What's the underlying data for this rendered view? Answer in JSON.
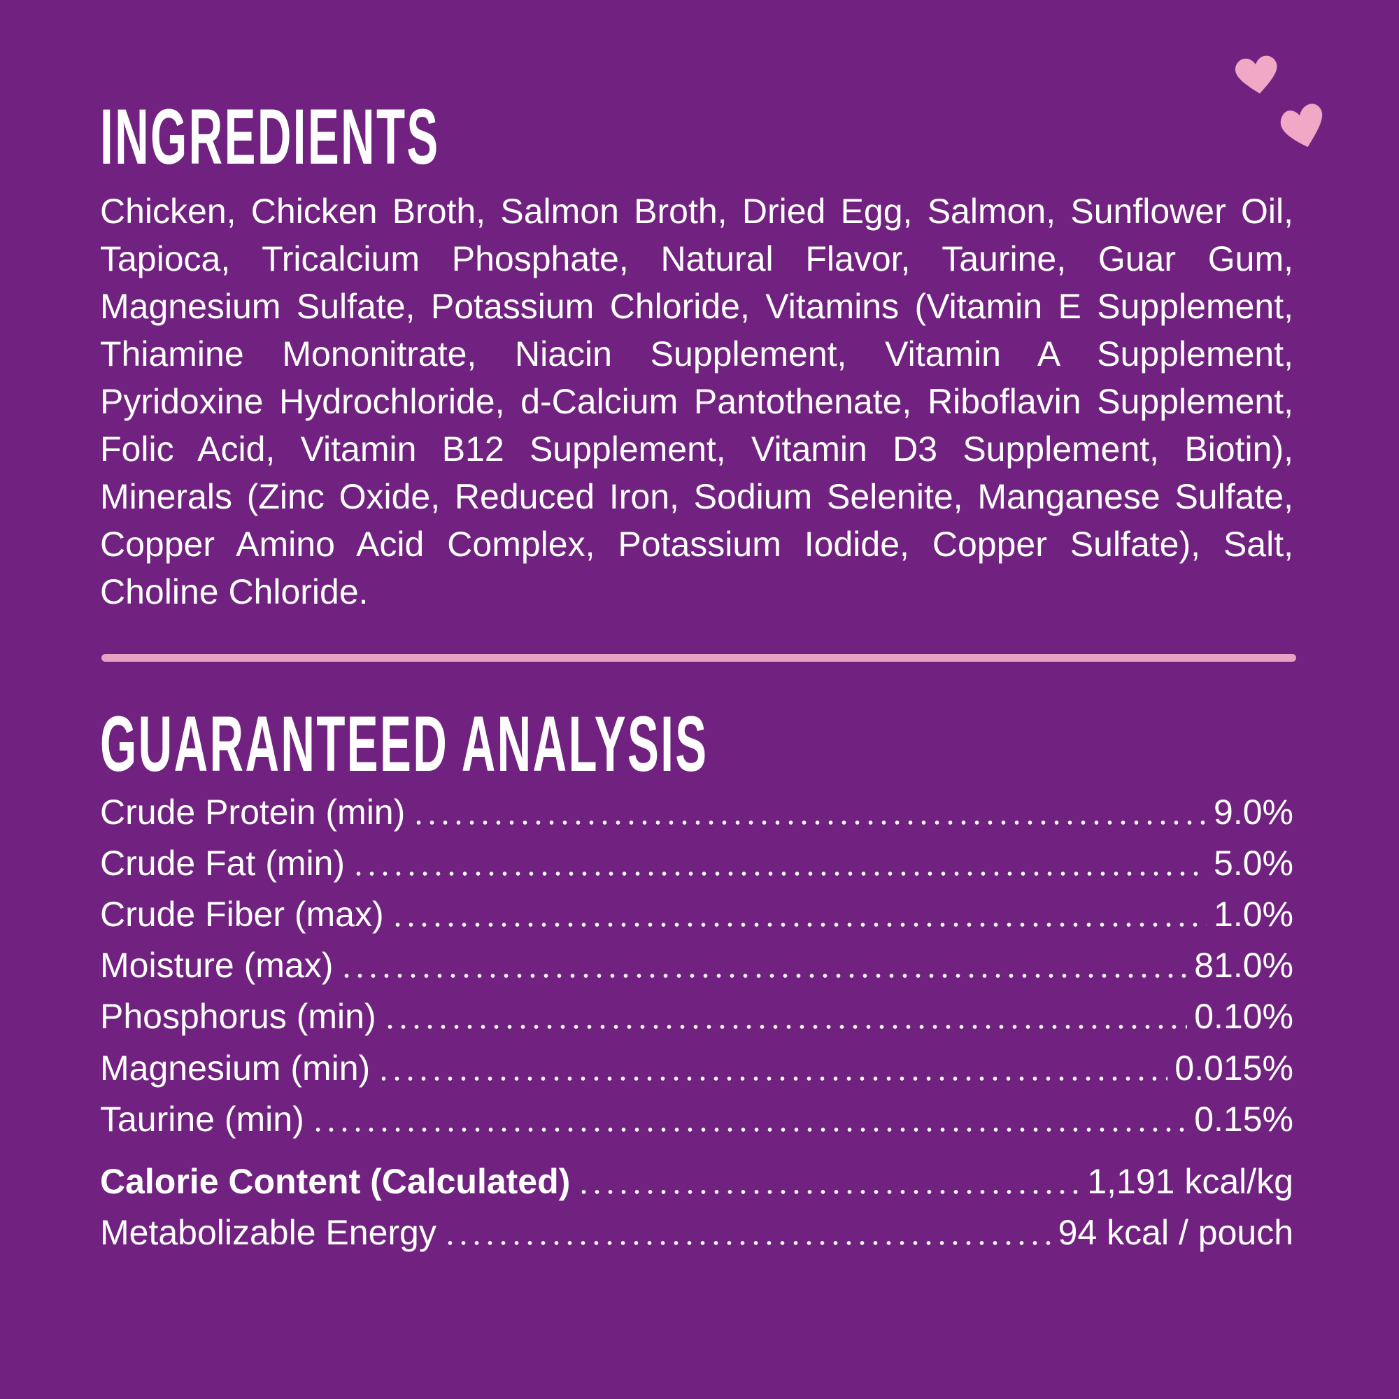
{
  "ingredients": {
    "title": "INGREDIENTS",
    "text": "Chicken, Chicken Broth, Salmon Broth, Dried Egg, Salmon, Sunflower Oil, Tapioca, Tricalcium Phosphate, Natural Flavor, Taurine, Guar Gum, Magnesium Sulfate, Potassium Chloride, Vitamins (Vitamin E Supplement, Thiamine Mononitrate, Niacin Supplement, Vitamin A Supplement, Pyridoxine Hydrochloride, d-Calcium Pantothenate, Riboflavin Supplement, Folic Acid, Vitamin B12 Supplement, Vitamin D3 Supplement, Biotin), Minerals (Zinc Oxide, Reduced Iron, Sodium Selenite, Manganese Sulfate, Copper Amino Acid Complex, Potassium Iodide, Copper Sulfate), Salt, Choline Chloride."
  },
  "analysis": {
    "title": "GUARANTEED ANALYSIS",
    "rows": [
      {
        "label": "Crude Protein (min)",
        "value": "9.0%"
      },
      {
        "label": "Crude Fat (min)",
        "value": "5.0%"
      },
      {
        "label": "Crude Fiber (max)",
        "value": "1.0%"
      },
      {
        "label": "Moisture (max)",
        "value": "81.0%"
      },
      {
        "label": "Phosphorus (min)",
        "value": "0.10%"
      },
      {
        "label": "Magnesium (min)",
        "value": "0.015%"
      },
      {
        "label": "Taurine (min)",
        "value": "0.15%"
      }
    ],
    "calorie": [
      {
        "label": "Calorie Content (Calculated)",
        "value": "1,191 kcal/kg"
      },
      {
        "label": "Metabolizable Energy",
        "value": "94 kcal / pouch"
      }
    ]
  }
}
